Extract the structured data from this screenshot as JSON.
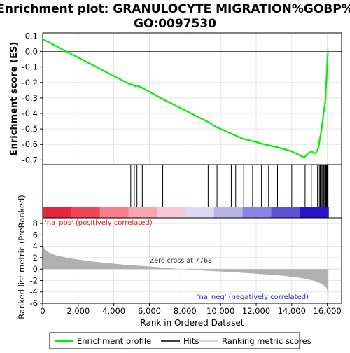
{
  "chart_data": {
    "type": "line",
    "title": "Enrichment plot: GRANULOCYTE MIGRATION%GOBP%\nGO:0097530",
    "es_panel": {
      "ylabel": "Enrichment score (ES)",
      "ylim": [
        -0.73,
        0.12
      ],
      "yticks": [
        0.1,
        0.0,
        -0.1,
        -0.2,
        -0.3,
        -0.4,
        -0.5,
        -0.6,
        -0.7
      ],
      "ytick_labels": [
        "0.1",
        "0.0",
        "-0.1",
        "-0.2",
        "-0.3",
        "-0.4",
        "-0.5",
        "-0.6",
        "-0.7"
      ],
      "line_color": "#00ee00",
      "points": [
        [
          0,
          0.08
        ],
        [
          4950,
          -0.215
        ],
        [
          5000,
          -0.21
        ],
        [
          5200,
          -0.225
        ],
        [
          5300,
          -0.22
        ],
        [
          5600,
          -0.235
        ],
        [
          6800,
          -0.31
        ],
        [
          9300,
          -0.455
        ],
        [
          9800,
          -0.49
        ],
        [
          10600,
          -0.53
        ],
        [
          10800,
          -0.54
        ],
        [
          11300,
          -0.565
        ],
        [
          11800,
          -0.578
        ],
        [
          12300,
          -0.595
        ],
        [
          12700,
          -0.605
        ],
        [
          13200,
          -0.618
        ],
        [
          14000,
          -0.645
        ],
        [
          14700,
          -0.685
        ],
        [
          14900,
          -0.66
        ],
        [
          15100,
          -0.645
        ],
        [
          15350,
          -0.66
        ],
        [
          15500,
          -0.62
        ],
        [
          15600,
          -0.55
        ],
        [
          15650,
          -0.52
        ],
        [
          15700,
          -0.48
        ],
        [
          15750,
          -0.44
        ],
        [
          15800,
          -0.39
        ],
        [
          15850,
          -0.35
        ],
        [
          15900,
          -0.31
        ],
        [
          15920,
          -0.24
        ],
        [
          15950,
          -0.18
        ],
        [
          15980,
          -0.11
        ],
        [
          16000,
          -0.06
        ],
        [
          16020,
          -0.03
        ],
        [
          16040,
          0.005
        ]
      ]
    },
    "hits": [
      4950,
      5150,
      5300,
      5600,
      6750,
      9300,
      9800,
      10600,
      10850,
      11300,
      11800,
      12300,
      12700,
      13200,
      14000,
      14750,
      15100,
      15450,
      15550,
      15600,
      15650,
      15700,
      15750,
      15800,
      15850,
      15880,
      15910,
      15940,
      15960,
      15980,
      16000,
      16020,
      16040
    ],
    "heatmap_colors": [
      "#e8243a",
      "#ef4555",
      "#f47e89",
      "#f8a5ad",
      "#f9c8d8",
      "#dcd9f0",
      "#b9b5ea",
      "#8a84e3",
      "#5c52d8",
      "#2a12c8"
    ],
    "metric_panel": {
      "ylabel": "Ranked list metric (PreRanked)",
      "ylim": [
        -6,
        9
      ],
      "yticks": [
        8,
        6,
        4,
        2,
        0,
        -2,
        -4,
        -6
      ],
      "ytick_labels": [
        "8",
        "6",
        "4",
        "2",
        "0",
        "-2",
        "-4",
        "-6"
      ],
      "fill_color": "#b0b0b0",
      "zero_cross": 7768,
      "zero_cross_label": "Zero cross at 7768",
      "pos_label": "'na_pos' (positively correlated)",
      "neg_label": "'na_neg' (negatively correlated)",
      "curve": [
        [
          0,
          4.4
        ],
        [
          100,
          3.6
        ],
        [
          300,
          3.0
        ],
        [
          700,
          2.45
        ],
        [
          1500,
          1.9
        ],
        [
          3000,
          1.25
        ],
        [
          4500,
          0.8
        ],
        [
          6000,
          0.45
        ],
        [
          7000,
          0.2
        ],
        [
          7768,
          0.0
        ],
        [
          9000,
          -0.25
        ],
        [
          10500,
          -0.5
        ],
        [
          12000,
          -0.8
        ],
        [
          13500,
          -1.15
        ],
        [
          14500,
          -1.55
        ],
        [
          15200,
          -2.0
        ],
        [
          15700,
          -2.6
        ],
        [
          15950,
          -3.3
        ],
        [
          16040,
          -4.2
        ],
        [
          16060,
          -5.6
        ]
      ]
    },
    "xlabel": "Rank in Ordered Dataset",
    "xlim": [
      0,
      16800
    ],
    "xticks": [
      0,
      2000,
      4000,
      6000,
      8000,
      10000,
      12000,
      14000,
      16000
    ],
    "xtick_labels": [
      "0",
      "2,000",
      "4,000",
      "6,000",
      "8,000",
      "10,000",
      "12,000",
      "14,000",
      "16,000"
    ],
    "legend": {
      "position": "bottom",
      "items": [
        {
          "label": "Enrichment profile",
          "color": "#00ee00"
        },
        {
          "label": "Hits",
          "color": "#000000"
        },
        {
          "label": "Ranking metric scores",
          "color": "#c0c0c0"
        }
      ]
    }
  }
}
